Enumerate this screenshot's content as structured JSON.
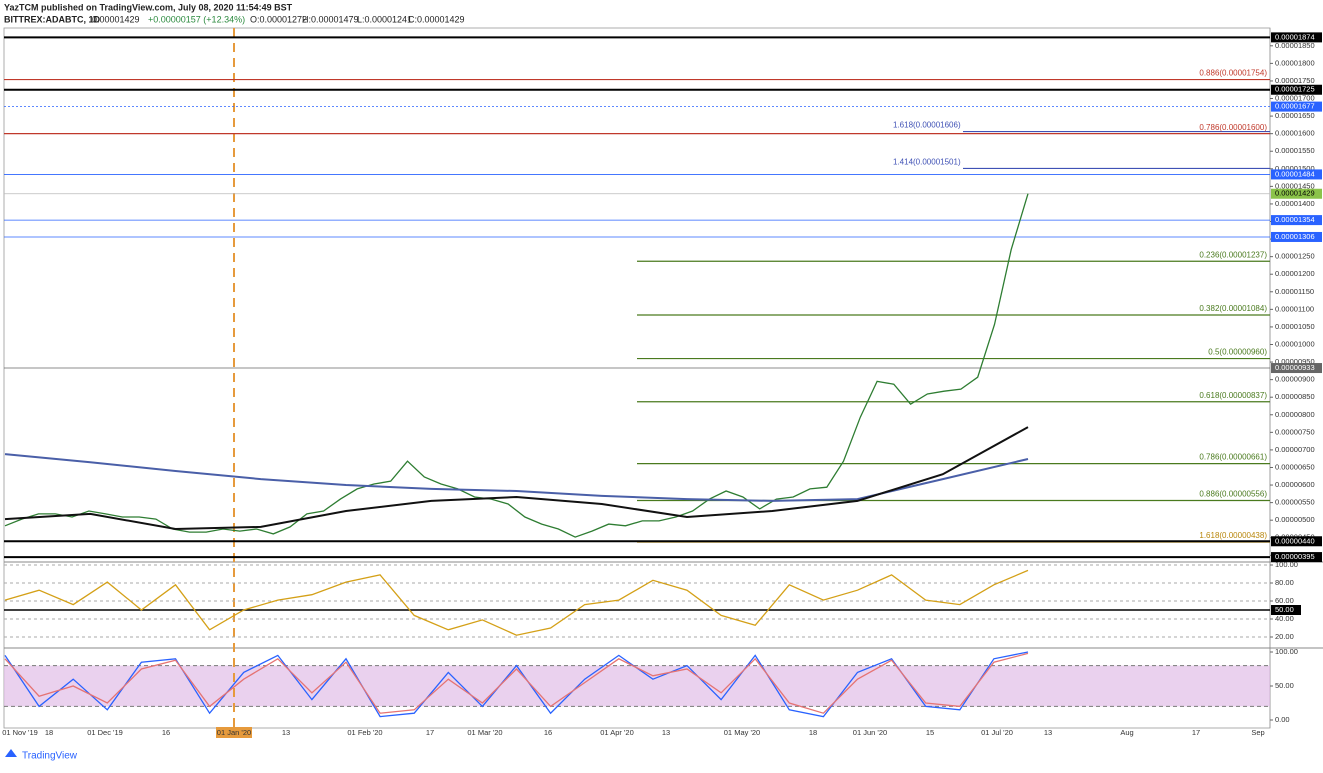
{
  "header": {
    "publisher": "YazTCM published on TradingView.com, July 08, 2020 11:54:49 BST",
    "symbol": "BITTREX:ADABTC, 1D",
    "last": "0.00001429",
    "change": "+0.00000157 (+12.34%)",
    "open": "O:0.00001272",
    "high": "H:0.00001479",
    "low": "L:0.00001241",
    "close": "C:0.00001429"
  },
  "time_axis": [
    "01 Nov '19",
    "18",
    "01 Dec '19",
    "16",
    "01 Jan '20",
    "13",
    "01 Feb '20",
    "17",
    "01 Mar '20",
    "16",
    "01 Apr '20",
    "13",
    "01 May '20",
    "18",
    "01 Jun '20",
    "15",
    "01 Jul '20",
    "13",
    "Aug",
    "17",
    "Sep"
  ],
  "footer": "TradingView",
  "chart_data": [
    {
      "type": "line",
      "ylim": [
        3.81e-06,
        1.895e-05
      ],
      "yticks": [
        {
          "value": 1.85e-05,
          "label": "0.00001850"
        },
        {
          "value": 1.8e-05,
          "label": "0.00001800"
        },
        {
          "value": 1.75e-05,
          "label": "0.00001750"
        },
        {
          "value": 1.7e-05,
          "label": "0.00001700"
        },
        {
          "value": 1.65e-05,
          "label": "0.00001650"
        },
        {
          "value": 1.6e-05,
          "label": "0.00001600"
        },
        {
          "value": 1.55e-05,
          "label": "0.00001550"
        },
        {
          "value": 1.5e-05,
          "label": "0.00001500"
        },
        {
          "value": 1.45e-05,
          "label": "0.00001450"
        },
        {
          "value": 1.4e-05,
          "label": "0.00001400"
        },
        {
          "value": 1.35e-05,
          "label": "0.00001350"
        },
        {
          "value": 1.3e-05,
          "label": "0.00001300"
        },
        {
          "value": 1.25e-05,
          "label": "0.00001250"
        },
        {
          "value": 1.2e-05,
          "label": "0.00001200"
        },
        {
          "value": 1.15e-05,
          "label": "0.00001150"
        },
        {
          "value": 1.1e-05,
          "label": "0.00001100"
        },
        {
          "value": 1.05e-05,
          "label": "0.00001050"
        },
        {
          "value": 1e-05,
          "label": "0.00001000"
        },
        {
          "value": 9.5e-06,
          "label": "0.00000950"
        },
        {
          "value": 9e-06,
          "label": "0.00000900"
        },
        {
          "value": 8.5e-06,
          "label": "0.00000850"
        },
        {
          "value": 8e-06,
          "label": "0.00000800"
        },
        {
          "value": 7.5e-06,
          "label": "0.00000750"
        },
        {
          "value": 7e-06,
          "label": "0.00000700"
        },
        {
          "value": 6.5e-06,
          "label": "0.00000650"
        },
        {
          "value": 6e-06,
          "label": "0.00000600"
        },
        {
          "value": 5.5e-06,
          "label": "0.00000550"
        },
        {
          "value": 5e-06,
          "label": "0.00000500"
        },
        {
          "value": 4.5e-06,
          "label": "0.00000450"
        },
        {
          "value": 4e-06,
          "label": "0.00000400"
        }
      ],
      "price_labels": [
        {
          "value": 1.874e-05,
          "label": "0.00001874",
          "color": "#000000"
        },
        {
          "value": 1.725e-05,
          "label": "0.00001725",
          "color": "#000000"
        },
        {
          "value": 1.677e-05,
          "label": "0.00001677",
          "color": "#2962ff"
        },
        {
          "value": 1.484e-05,
          "label": "0.00001484",
          "color": "#2962ff"
        },
        {
          "value": 1.429e-05,
          "label": "0.00001429",
          "color": "#8bc34a"
        },
        {
          "value": 1.354e-05,
          "label": "0.00001354",
          "color": "#2962ff"
        },
        {
          "value": 1.306e-05,
          "label": "0.00001306",
          "color": "#2962ff"
        },
        {
          "value": 9.33e-06,
          "label": "0.00000933",
          "color": "#666666"
        },
        {
          "value": 4.4e-06,
          "label": "0.00000440",
          "color": "#000000"
        },
        {
          "value": 3.95e-06,
          "label": "0.00000395",
          "color": "#000000"
        }
      ],
      "levels": [
        {
          "value": 1.754e-05,
          "label": "0.886(0.00001754)",
          "color": "#c0392b"
        },
        {
          "value": 1.606e-05,
          "label": "1.618(0.00001606)",
          "color": "#3f51b5"
        },
        {
          "value": 1.6e-05,
          "label": "0.786(0.00001600)",
          "color": "#c0392b"
        },
        {
          "value": 1.501e-05,
          "label": "1.414(0.00001501)",
          "color": "#3f51b5"
        },
        {
          "value": 1.237e-05,
          "label": "0.236(0.00001237)",
          "color": "#4a7a1e"
        },
        {
          "value": 1.084e-05,
          "label": "0.382(0.00001084)",
          "color": "#4a7a1e"
        },
        {
          "value": 9.6e-06,
          "label": "0.5(0.00000960)",
          "color": "#4a7a1e"
        },
        {
          "value": 8.37e-06,
          "label": "0.618(0.00000837)",
          "color": "#4a7a1e"
        },
        {
          "value": 6.61e-06,
          "label": "0.786(0.00000661)",
          "color": "#4a7a1e"
        },
        {
          "value": 5.56e-06,
          "label": "0.886(0.00000556)",
          "color": "#4a7a1e"
        },
        {
          "value": 4.38e-06,
          "label": "1.618(0.00000438)",
          "color": "#b8860b"
        }
      ],
      "series": [
        {
          "color": "#2e7d32",
          "values": [
            4.84e-06,
            5.03e-06,
            5.18e-06,
            5.18e-06,
            5.09e-06,
            5.26e-06,
            5.18e-06,
            5.09e-06,
            5.09e-06,
            5.03e-06,
            4.75e-06,
            4.66e-06,
            4.66e-06,
            4.75e-06,
            4.69e-06,
            4.75e-06,
            4.61e-06,
            4.81e-06,
            5.18e-06,
            5.26e-06,
            5.6e-06,
            5.89e-06,
            6.03e-06,
            6.11e-06,
            6.68e-06,
            6.23e-06,
            6.03e-06,
            5.89e-06,
            5.66e-06,
            5.6e-06,
            5.46e-06,
            5.09e-06,
            4.89e-06,
            4.75e-06,
            4.52e-06,
            4.69e-06,
            4.89e-06,
            4.84e-06,
            4.98e-06,
            4.98e-06,
            5.09e-06,
            5.26e-06,
            5.6e-06,
            5.83e-06,
            5.66e-06,
            5.32e-06,
            5.6e-06,
            5.66e-06,
            5.89e-06,
            5.94e-06,
            6.68e-06,
            7.93e-06,
            8.95e-06,
            8.87e-06,
            8.3e-06,
            8.59e-06,
            8.67e-06,
            8.73e-06,
            9.07e-06,
            1.057e-05,
            1.27e-05,
            1.429e-05
          ]
        },
        {
          "color": "#4a5fa8",
          "values": [
            6.88e-06,
            6.65e-06,
            6.4e-06,
            6.17e-06,
            6e-06,
            5.89e-06,
            5.83e-06,
            5.69e-06,
            5.6e-06,
            5.55e-06,
            5.6e-06,
            6.17e-06,
            6.74e-06
          ]
        },
        {
          "color": "#111111",
          "values": [
            5.03e-06,
            5.18e-06,
            4.75e-06,
            4.81e-06,
            5.26e-06,
            5.55e-06,
            5.66e-06,
            5.46e-06,
            5.09e-06,
            5.26e-06,
            5.55e-06,
            6.31e-06,
            7.65e-06
          ]
        }
      ]
    },
    {
      "type": "line",
      "ylim": [
        0,
        100
      ],
      "yticks": [
        {
          "value": 100,
          "label": "100.00"
        },
        {
          "value": 80,
          "label": "80.00"
        },
        {
          "value": 60,
          "label": "60.00"
        },
        {
          "value": 40,
          "label": "40.00"
        },
        {
          "value": 20,
          "label": "20.00"
        }
      ],
      "marker": {
        "value": 50,
        "label": "50.00"
      },
      "series": [
        {
          "color": "#d4a017",
          "values": [
            61,
            72,
            56,
            81,
            50,
            78,
            28,
            50,
            61,
            67,
            81,
            89,
            44,
            28,
            39,
            22,
            30,
            56,
            61,
            83,
            72,
            44,
            33,
            78,
            61,
            72,
            89,
            61,
            56,
            78,
            94
          ]
        }
      ]
    },
    {
      "type": "line",
      "ylim": [
        0,
        100
      ],
      "yticks": [
        {
          "value": 100,
          "label": "100.00"
        },
        {
          "value": 50,
          "label": "50.00"
        },
        {
          "value": 0,
          "label": "0.00"
        }
      ],
      "series": [
        {
          "color": "#2962ff",
          "values": [
            95,
            20,
            60,
            15,
            85,
            90,
            10,
            70,
            95,
            30,
            90,
            5,
            10,
            70,
            20,
            80,
            10,
            60,
            95,
            60,
            80,
            30,
            95,
            15,
            5,
            70,
            90,
            20,
            15,
            90,
            100
          ]
        },
        {
          "color": "#e57373",
          "values": [
            90,
            35,
            50,
            25,
            75,
            88,
            20,
            60,
            90,
            40,
            85,
            10,
            15,
            60,
            25,
            75,
            20,
            55,
            90,
            65,
            75,
            40,
            90,
            25,
            10,
            60,
            88,
            25,
            20,
            85,
            98
          ]
        }
      ]
    }
  ]
}
